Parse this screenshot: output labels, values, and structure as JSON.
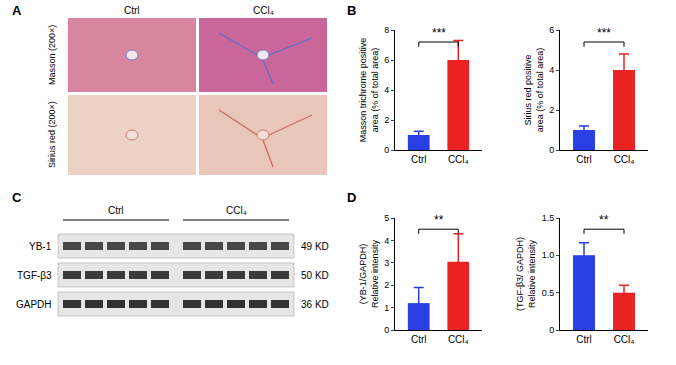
{
  "panel_labels": [
    "A",
    "B",
    "C",
    "D"
  ],
  "histology": {
    "columns": [
      "Ctrl",
      "CCl₄"
    ],
    "rows": [
      "Masson (200×)",
      "Sirius red (200×)"
    ]
  },
  "western_blot": {
    "groups": [
      {
        "label": "Ctrl",
        "lanes": 5
      },
      {
        "label": "CCl₄",
        "lanes": 5
      }
    ],
    "rows": [
      {
        "label": "YB-1",
        "size": "49 KD"
      },
      {
        "label": "TGF-β3",
        "size": "50 KD"
      },
      {
        "label": "GAPDH",
        "size": "36 KD"
      }
    ]
  },
  "chart_data": [
    {
      "type": "bar",
      "categories": [
        "Ctrl",
        "CCl₄"
      ],
      "values": [
        1.0,
        6.0
      ],
      "errors": [
        0.25,
        1.3
      ],
      "colors": [
        "#2a3fe3",
        "#ec2323"
      ],
      "ylabel": [
        "Masson trichrome positive",
        "area (% of total area)"
      ],
      "ylim": [
        0,
        8
      ],
      "yticks": [
        0,
        2,
        4,
        6,
        8
      ],
      "annotation": "***"
    },
    {
      "type": "bar",
      "categories": [
        "Ctrl",
        "CCl₄"
      ],
      "values": [
        1.0,
        4.0
      ],
      "errors": [
        0.2,
        0.8
      ],
      "colors": [
        "#2a3fe3",
        "#ec2323"
      ],
      "ylabel": [
        "Sirius red positive",
        "area (% of total area)"
      ],
      "ylim": [
        0,
        6
      ],
      "yticks": [
        0,
        2,
        4,
        6
      ],
      "annotation": "***"
    },
    {
      "type": "bar",
      "categories": [
        "Ctrl",
        "CCl₄"
      ],
      "values": [
        1.2,
        3.05
      ],
      "errors": [
        0.7,
        1.25
      ],
      "colors": [
        "#2a3fe3",
        "#ec2323"
      ],
      "ylabel": [
        "(YB-1/GAPDH)",
        "Relative intensity"
      ],
      "ylim": [
        0,
        5
      ],
      "yticks": [
        0,
        1,
        2,
        3,
        4,
        5
      ],
      "annotation": "**"
    },
    {
      "type": "bar",
      "categories": [
        "Ctrl",
        "CCl₄"
      ],
      "values": [
        1.0,
        0.5
      ],
      "errors": [
        0.17,
        0.1
      ],
      "colors": [
        "#2a3fe3",
        "#ec2323"
      ],
      "ylabel": [
        "(TGF-β3/ GAPDH)",
        "Relative intensity"
      ],
      "ylim": [
        0,
        1.5
      ],
      "yticks": [
        0,
        0.5,
        {
          "value": 1,
          "label": "1.0"
        },
        1.5
      ],
      "annotation": "**"
    }
  ]
}
